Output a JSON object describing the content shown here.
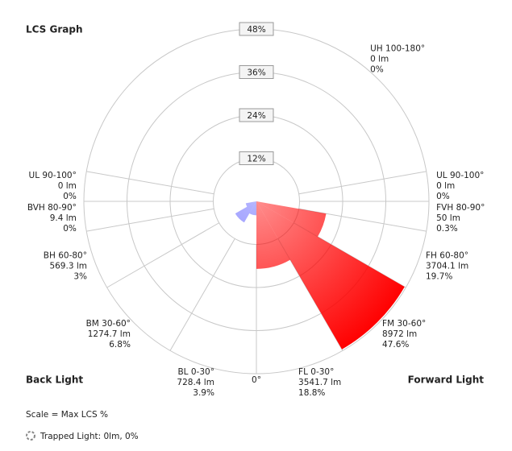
{
  "chart_data": {
    "type": "polar",
    "title": "LCS Graph",
    "rlim": [
      0,
      48
    ],
    "rticks": [
      {
        "value": 12,
        "label": "12%"
      },
      {
        "value": 24,
        "label": "24%"
      },
      {
        "value": 36,
        "label": "36%"
      },
      {
        "value": 48,
        "label": "48%"
      }
    ],
    "nadir_label": "0°",
    "sides": [
      {
        "name": "Forward Light",
        "direction": "right",
        "color": "#ff0000",
        "zones": [
          {
            "label": "FL 0-30°",
            "lumens": "3541.7 lm",
            "value": 18.8,
            "value_label": "18.8%"
          },
          {
            "label": "FM 30-60°",
            "lumens": "8972 lm",
            "value": 47.6,
            "value_label": "47.6%"
          },
          {
            "label": "FH 60-80°",
            "lumens": "3704.1 lm",
            "value": 19.7,
            "value_label": "19.7%"
          },
          {
            "label": "FVH 80-90°",
            "lumens": "50 lm",
            "value": 0.3,
            "value_label": "0.3%"
          },
          {
            "label": "UL 90-100°",
            "lumens": "0 lm",
            "value": 0,
            "value_label": "0%"
          },
          {
            "label": "UH 100-180°",
            "lumens": "0 lm",
            "value": 0,
            "value_label": "0%"
          }
        ]
      },
      {
        "name": "Back Light",
        "direction": "left",
        "color": "#5a5aff",
        "zones": [
          {
            "label": "BL 0-30°",
            "lumens": "728.4 lm",
            "value": 3.9,
            "value_label": "3.9%"
          },
          {
            "label": "BM 30-60°",
            "lumens": "1274.7 lm",
            "value": 6.8,
            "value_label": "6.8%"
          },
          {
            "label": "BH 60-80°",
            "lumens": "569.3 lm",
            "value": 3,
            "value_label": "3%"
          },
          {
            "label": "BVH 80-90°",
            "lumens": "9.4 lm",
            "value": 0,
            "value_label": "0%"
          },
          {
            "label": "UL 90-100°",
            "lumens": "0 lm",
            "value": 0,
            "value_label": "0%"
          }
        ]
      }
    ],
    "scale_note": "Scale = Max LCS %",
    "trapped_light": "Trapped Light: 0lm, 0%"
  }
}
